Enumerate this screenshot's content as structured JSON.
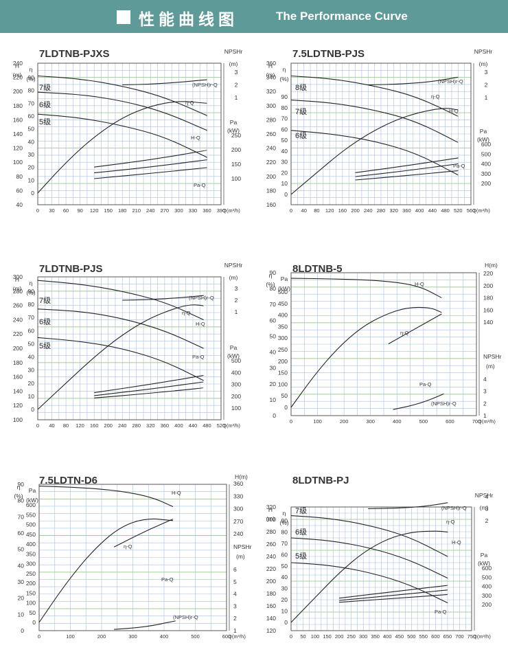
{
  "header": {
    "title_zh": "性能曲线图",
    "title_en": "The Performance Curve"
  },
  "chart_data": [
    {
      "type": "line",
      "title": "7LDTNB-PJXS",
      "xlabel": "Q(m³/h)",
      "xlim": [
        0,
        390
      ],
      "xticks": [
        "0",
        "30",
        "60",
        "90",
        "120",
        "150",
        "180",
        "210",
        "240",
        "270",
        "300",
        "330",
        "360",
        "390"
      ],
      "left_axes": [
        {
          "name": "H",
          "unit": "(m)",
          "ticks": [
            "40",
            "60",
            "80",
            "100",
            "120",
            "140",
            "160",
            "180",
            "200",
            "220",
            "240"
          ]
        },
        {
          "name": "η",
          "unit": "(%)",
          "ticks": [
            "0",
            "10",
            "20",
            "30",
            "40",
            "50",
            "60",
            "70",
            "80",
            "90"
          ]
        }
      ],
      "right_axes": [
        {
          "name": "NPSHr",
          "unit": "(m)",
          "ticks": [
            "3",
            "2",
            "1"
          ]
        },
        {
          "name": "Pa",
          "unit": "(kW)",
          "ticks": [
            "250",
            "200",
            "150",
            "100"
          ]
        }
      ],
      "stage_labels": [
        "7级",
        "6级",
        "5级"
      ],
      "curve_labels": [
        "(NPSH)r-Q",
        "η-Q",
        "H-Q",
        "Pa-Q"
      ],
      "series": [
        {
          "name": "7级 H-Q",
          "x": [
            0,
            90,
            180,
            270,
            360
          ],
          "y": [
            222,
            218,
            208,
            192,
            166
          ]
        },
        {
          "name": "6级 H-Q",
          "x": [
            0,
            90,
            180,
            270,
            360
          ],
          "y": [
            199,
            196,
            187,
            171,
            145
          ]
        },
        {
          "name": "5级 H-Q",
          "x": [
            0,
            90,
            180,
            270,
            360
          ],
          "y": [
            168,
            163,
            152,
            136,
            107
          ]
        },
        {
          "name": "η-Q",
          "x": [
            0,
            60,
            120,
            180,
            240,
            300,
            360
          ],
          "y": [
            0,
            24,
            44,
            59,
            68,
            72,
            70
          ]
        },
        {
          "name": "(NPSH)r-Q",
          "x": [
            180,
            240,
            300,
            360
          ],
          "y": [
            2.0,
            2.05,
            2.2,
            2.4
          ]
        },
        {
          "name": "7级 Pa-Q",
          "x": [
            120,
            240,
            360
          ],
          "y": [
            140,
            165,
            198
          ]
        },
        {
          "name": "6级 Pa-Q",
          "x": [
            120,
            240,
            360
          ],
          "y": [
            120,
            140,
            165
          ]
        },
        {
          "name": "5级 Pa-Q",
          "x": [
            120,
            240,
            360
          ],
          "y": [
            100,
            118,
            138
          ]
        }
      ]
    },
    {
      "type": "line",
      "title": "7.5LDTNB-PJS",
      "xlabel": "Q(m³/h)",
      "xlim": [
        0,
        560
      ],
      "xticks": [
        "0",
        "40",
        "80",
        "120",
        "160",
        "200",
        "240",
        "280",
        "320",
        "360",
        "400",
        "440",
        "480",
        "520",
        "560"
      ],
      "left_axes": [
        {
          "name": "H",
          "unit": "(m)",
          "ticks": [
            "160",
            "180",
            "200",
            "220",
            "240",
            "260",
            "280",
            "300",
            "320",
            "340",
            "360"
          ]
        },
        {
          "name": "η",
          "unit": "(%)",
          "ticks": [
            "0",
            "10",
            "20",
            "30",
            "40",
            "50",
            "60",
            "70",
            "80",
            "90"
          ]
        }
      ],
      "right_axes": [
        {
          "name": "NPSHr",
          "unit": "(m)",
          "ticks": [
            "3",
            "2",
            "1"
          ]
        },
        {
          "name": "Pa",
          "unit": "(kW)",
          "ticks": [
            "600",
            "500",
            "400",
            "300",
            "200"
          ]
        }
      ],
      "stage_labels": [
        "8级",
        "7级",
        "6级"
      ],
      "curve_labels": [
        "(NPSH)r-Q",
        "η-Q",
        "H-Q",
        "Pa-Q"
      ],
      "series": [
        {
          "name": "8级 H-Q",
          "x": [
            0,
            130,
            260,
            390,
            520
          ],
          "y": [
            342,
            338,
            328,
            313,
            285
          ]
        },
        {
          "name": "7级 H-Q",
          "x": [
            0,
            130,
            260,
            390,
            520
          ],
          "y": [
            308,
            304,
            294,
            278,
            248
          ]
        },
        {
          "name": "6级 H-Q",
          "x": [
            0,
            130,
            260,
            390,
            520
          ],
          "y": [
            265,
            260,
            250,
            233,
            202
          ]
        },
        {
          "name": "η-Q",
          "x": [
            0,
            80,
            160,
            240,
            320,
            400,
            480,
            520
          ],
          "y": [
            0,
            20,
            40,
            56,
            68,
            76,
            80,
            78
          ]
        },
        {
          "name": "(NPSH)r-Q",
          "x": [
            240,
            340,
            440,
            520
          ],
          "y": [
            2.0,
            2.05,
            2.25,
            2.6
          ]
        },
        {
          "name": "8级 Pa-Q",
          "x": [
            200,
            360,
            520
          ],
          "y": [
            310,
            380,
            460
          ]
        },
        {
          "name": "7级 Pa-Q",
          "x": [
            200,
            360,
            520
          ],
          "y": [
            270,
            330,
            400
          ]
        },
        {
          "name": "6级 Pa-Q",
          "x": [
            200,
            360,
            520
          ],
          "y": [
            235,
            280,
            330
          ]
        }
      ]
    },
    {
      "type": "line",
      "title": "7LDTNB-PJS",
      "xlabel": "Q(m³/h)",
      "xlim": [
        0,
        520
      ],
      "xticks": [
        "0",
        "40",
        "80",
        "120",
        "160",
        "200",
        "240",
        "280",
        "320",
        "360",
        "400",
        "440",
        "480",
        "520"
      ],
      "left_axes": [
        {
          "name": "H",
          "unit": "(m)",
          "ticks": [
            "100",
            "120",
            "140",
            "160",
            "180",
            "200",
            "220",
            "240",
            "260",
            "280",
            "300"
          ]
        },
        {
          "name": "η",
          "unit": "(%)",
          "ticks": [
            "0",
            "10",
            "20",
            "30",
            "40",
            "50",
            "60",
            "70",
            "80",
            "90"
          ]
        }
      ],
      "right_axes": [
        {
          "name": "NPSHr",
          "unit": "(m)",
          "ticks": [
            "3",
            "2",
            "1"
          ]
        },
        {
          "name": "Pa",
          "unit": "(kW)",
          "ticks": [
            "500",
            "400",
            "300",
            "200",
            "100"
          ]
        }
      ],
      "stage_labels": [
        "7级",
        "6级",
        "5级"
      ],
      "curve_labels": [
        "(NPSH)r-Q",
        "η-Q",
        "H-Q",
        "Pa-Q"
      ],
      "series": [
        {
          "name": "7级 H-Q",
          "x": [
            0,
            120,
            240,
            360,
            470
          ],
          "y": [
            295,
            290,
            280,
            265,
            240
          ]
        },
        {
          "name": "6级 H-Q",
          "x": [
            0,
            120,
            240,
            360,
            470
          ],
          "y": [
            255,
            252,
            242,
            225,
            200
          ]
        },
        {
          "name": "5级 H-Q",
          "x": [
            0,
            120,
            240,
            360,
            470
          ],
          "y": [
            215,
            210,
            200,
            182,
            155
          ]
        },
        {
          "name": "η-Q",
          "x": [
            0,
            80,
            160,
            240,
            320,
            400,
            440,
            470
          ],
          "y": [
            0,
            20,
            40,
            57,
            70,
            78,
            80,
            79
          ]
        },
        {
          "name": "(NPSH)r-Q",
          "x": [
            240,
            320,
            400,
            470
          ],
          "y": [
            2.0,
            2.05,
            2.2,
            2.4
          ]
        },
        {
          "name": "7级 Pa-Q",
          "x": [
            160,
            320,
            470
          ],
          "y": [
            230,
            300,
            375
          ]
        },
        {
          "name": "6级 Pa-Q",
          "x": [
            160,
            320,
            470
          ],
          "y": [
            205,
            260,
            320
          ]
        },
        {
          "name": "5级 Pa-Q",
          "x": [
            160,
            320,
            470
          ],
          "y": [
            185,
            225,
            270
          ]
        }
      ]
    },
    {
      "type": "line",
      "title": "8LDTNB-5",
      "xlabel": "Q(m³/h)",
      "xlim": [
        0,
        800
      ],
      "xticks": [
        "0",
        "100",
        "200",
        "300",
        "400",
        "500",
        "600",
        "700"
      ],
      "left_axes": [
        {
          "name": "η",
          "unit": "(%)",
          "ticks": [
            "0",
            "10",
            "20",
            "30",
            "40",
            "50",
            "60",
            "70",
            "80",
            "90"
          ]
        },
        {
          "name": "Pa",
          "unit": "(kW)",
          "ticks": [
            "0",
            "50",
            "100",
            "150",
            "200",
            "250",
            "300",
            "350",
            "400",
            "450",
            "500"
          ]
        }
      ],
      "right_axes": [
        {
          "name": "H(m)",
          "unit": "",
          "ticks": [
            "220",
            "200",
            "180",
            "160",
            "140"
          ]
        },
        {
          "name": "NPSHr",
          "unit": "(m)",
          "ticks": [
            "4",
            "3",
            "2",
            "1"
          ]
        }
      ],
      "stage_labels": [],
      "curve_labels": [
        "H-Q",
        "η-Q",
        "Pa-Q",
        "(NPSH)r-Q"
      ],
      "series": [
        {
          "name": "H-Q",
          "x": [
            0,
            200,
            400,
            550,
            650
          ],
          "y": [
            212,
            211,
            208,
            200,
            180
          ]
        },
        {
          "name": "η-Q",
          "x": [
            0,
            100,
            200,
            300,
            400,
            500,
            600,
            650
          ],
          "y": [
            0,
            25,
            46,
            62,
            72,
            78,
            78,
            74
          ]
        },
        {
          "name": "Pa-Q",
          "x": [
            420,
            540,
            650
          ],
          "y": [
            230,
            290,
            345
          ]
        },
        {
          "name": "(NPSH)r-Q",
          "x": [
            440,
            560,
            660
          ],
          "y": [
            1.5,
            2.0,
            2.8
          ]
        }
      ]
    },
    {
      "type": "line",
      "title": "7.5LDTN-D6",
      "xlabel": "Q(m³/h)",
      "xlim": [
        0,
        700
      ],
      "xticks": [
        "0",
        "100",
        "200",
        "300",
        "400",
        "500",
        "600"
      ],
      "left_axes": [
        {
          "name": "η",
          "unit": "(%)",
          "ticks": [
            "0",
            "10",
            "20",
            "30",
            "40",
            "50",
            "60",
            "70",
            "80",
            "90"
          ]
        },
        {
          "name": "Pa",
          "unit": "(kW)",
          "ticks": [
            "0",
            "50",
            "100",
            "150",
            "200",
            "250",
            "300",
            "350",
            "400",
            "450",
            "500",
            "550",
            "600"
          ]
        }
      ],
      "right_axes": [
        {
          "name": "H(m)",
          "unit": "",
          "ticks": [
            "360",
            "330",
            "300",
            "270",
            "240"
          ]
        },
        {
          "name": "NPSHr",
          "unit": "(m)",
          "ticks": [
            "6",
            "5",
            "4",
            "3",
            "2",
            "1"
          ]
        }
      ],
      "stage_labels": [],
      "curve_labels": [
        "H-Q",
        "η-Q",
        "Pa-Q",
        "(NPSH)r-Q"
      ],
      "series": [
        {
          "name": "H-Q",
          "x": [
            0,
            150,
            300,
            420,
            500
          ],
          "y": [
            354,
            351,
            343,
            328,
            305
          ]
        },
        {
          "name": "η-Q",
          "x": [
            0,
            100,
            200,
            300,
            400,
            500
          ],
          "y": [
            0,
            30,
            55,
            73,
            80,
            78
          ]
        },
        {
          "name": "Pa-Q",
          "x": [
            280,
            400,
            500
          ],
          "y": [
            360,
            430,
            480
          ]
        },
        {
          "name": "(NPSH)r-Q",
          "x": [
            280,
            400,
            510
          ],
          "y": [
            1.1,
            1.3,
            1.8
          ]
        }
      ]
    },
    {
      "type": "line",
      "title": "8LDTNB-PJ",
      "xlabel": "Q(m³/h)",
      "xlim": [
        0,
        750
      ],
      "xticks": [
        "0",
        "50",
        "100",
        "150",
        "200",
        "250",
        "300",
        "350",
        "400",
        "450",
        "500",
        "550",
        "600",
        "650",
        "700",
        "750"
      ],
      "left_axes": [
        {
          "name": "H",
          "unit": "(m)",
          "ticks": [
            "120",
            "140",
            "160",
            "180",
            "200",
            "220",
            "240",
            "260",
            "280",
            "300",
            "320"
          ]
        },
        {
          "name": "η",
          "unit": "(%)",
          "ticks": [
            "0",
            "10",
            "20",
            "30",
            "40",
            "50",
            "60",
            "70",
            "80",
            "90"
          ]
        }
      ],
      "right_axes": [
        {
          "name": "NPSHr",
          "unit": "(m)",
          "ticks": [
            "4",
            "3",
            "2"
          ]
        },
        {
          "name": "Pa",
          "unit": "(kW)",
          "ticks": [
            "600",
            "500",
            "400",
            "300",
            "200"
          ]
        }
      ],
      "stage_labels": [
        "7级",
        "6级",
        "5级"
      ],
      "curve_labels": [
        "(NPSH)r-Q",
        "η-Q",
        "H-Q",
        "Pa-Q"
      ],
      "series": [
        {
          "name": "7级 H-Q",
          "x": [
            0,
            160,
            330,
            490,
            650
          ],
          "y": [
            306,
            302,
            290,
            272,
            240
          ]
        },
        {
          "name": "6级 H-Q",
          "x": [
            0,
            160,
            330,
            490,
            650
          ],
          "y": [
            270,
            266,
            254,
            235,
            205
          ]
        },
        {
          "name": "5级 H-Q",
          "x": [
            0,
            160,
            330,
            490,
            650
          ],
          "y": [
            230,
            226,
            214,
            195,
            165
          ]
        },
        {
          "name": "η-Q",
          "x": [
            0,
            100,
            200,
            300,
            400,
            500,
            600,
            650
          ],
          "y": [
            0,
            22,
            44,
            62,
            74,
            80,
            81,
            80
          ]
        },
        {
          "name": "(NPSH)r-Q",
          "x": [
            320,
            450,
            560,
            650
          ],
          "y": [
            3.0,
            3.05,
            3.2,
            3.5
          ]
        },
        {
          "name": "7级 Pa-Q",
          "x": [
            200,
            420,
            650
          ],
          "y": [
            270,
            340,
            410
          ]
        },
        {
          "name": "6级 Pa-Q",
          "x": [
            200,
            420,
            650
          ],
          "y": [
            245,
            300,
            360
          ]
        },
        {
          "name": "5级 Pa-Q",
          "x": [
            200,
            420,
            650
          ],
          "y": [
            225,
            265,
            310
          ]
        }
      ]
    }
  ]
}
